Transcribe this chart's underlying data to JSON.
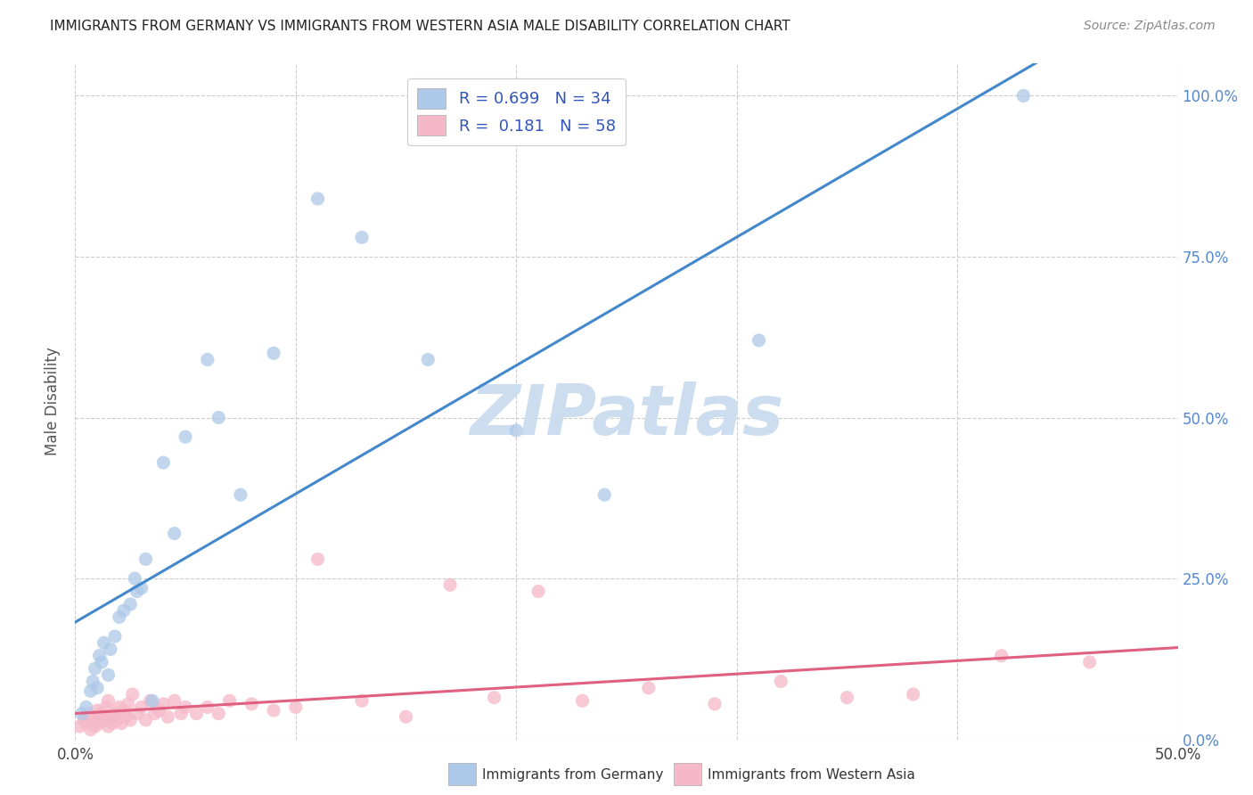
{
  "title": "IMMIGRANTS FROM GERMANY VS IMMIGRANTS FROM WESTERN ASIA MALE DISABILITY CORRELATION CHART",
  "source": "Source: ZipAtlas.com",
  "ylabel": "Male Disability",
  "xlim": [
    0.0,
    0.5
  ],
  "ylim": [
    0.0,
    1.05
  ],
  "yticks": [
    0.0,
    0.25,
    0.5,
    0.75,
    1.0
  ],
  "xticks": [
    0.0,
    0.1,
    0.2,
    0.3,
    0.4,
    0.5
  ],
  "R_germany": 0.699,
  "N_germany": 34,
  "R_western_asia": 0.181,
  "N_western_asia": 58,
  "color_germany": "#adc8e8",
  "color_western_asia": "#f5b8c8",
  "line_color_germany": "#4488cc",
  "line_color_western_asia": "#e06080",
  "watermark": "ZIPatlas",
  "watermark_color": "#ccddf0",
  "germany_points_x": [
    0.003,
    0.005,
    0.007,
    0.008,
    0.009,
    0.01,
    0.011,
    0.012,
    0.013,
    0.015,
    0.016,
    0.018,
    0.02,
    0.022,
    0.025,
    0.027,
    0.028,
    0.03,
    0.032,
    0.035,
    0.04,
    0.045,
    0.05,
    0.06,
    0.065,
    0.075,
    0.09,
    0.11,
    0.13,
    0.16,
    0.2,
    0.24,
    0.31,
    0.43
  ],
  "germany_points_y": [
    0.04,
    0.05,
    0.075,
    0.09,
    0.11,
    0.08,
    0.13,
    0.12,
    0.15,
    0.1,
    0.14,
    0.16,
    0.19,
    0.2,
    0.21,
    0.25,
    0.23,
    0.235,
    0.28,
    0.06,
    0.43,
    0.32,
    0.47,
    0.59,
    0.5,
    0.38,
    0.6,
    0.84,
    0.78,
    0.59,
    0.48,
    0.38,
    0.62,
    1.0
  ],
  "western_asia_points_x": [
    0.002,
    0.004,
    0.005,
    0.006,
    0.007,
    0.008,
    0.009,
    0.01,
    0.01,
    0.011,
    0.012,
    0.013,
    0.014,
    0.015,
    0.015,
    0.016,
    0.017,
    0.018,
    0.019,
    0.02,
    0.021,
    0.022,
    0.023,
    0.024,
    0.025,
    0.026,
    0.028,
    0.03,
    0.032,
    0.034,
    0.036,
    0.038,
    0.04,
    0.042,
    0.045,
    0.048,
    0.05,
    0.055,
    0.06,
    0.065,
    0.07,
    0.08,
    0.09,
    0.1,
    0.11,
    0.13,
    0.15,
    0.17,
    0.19,
    0.21,
    0.23,
    0.26,
    0.29,
    0.32,
    0.35,
    0.38,
    0.42,
    0.46
  ],
  "western_asia_points_y": [
    0.02,
    0.03,
    0.025,
    0.04,
    0.015,
    0.035,
    0.02,
    0.03,
    0.045,
    0.025,
    0.04,
    0.03,
    0.05,
    0.02,
    0.06,
    0.035,
    0.025,
    0.04,
    0.03,
    0.05,
    0.025,
    0.045,
    0.035,
    0.055,
    0.03,
    0.07,
    0.04,
    0.05,
    0.03,
    0.06,
    0.04,
    0.045,
    0.055,
    0.035,
    0.06,
    0.04,
    0.05,
    0.04,
    0.05,
    0.04,
    0.06,
    0.055,
    0.045,
    0.05,
    0.28,
    0.06,
    0.035,
    0.24,
    0.065,
    0.23,
    0.06,
    0.08,
    0.055,
    0.09,
    0.065,
    0.07,
    0.13,
    0.12
  ],
  "legend_label_germany": "Immigrants from Germany",
  "legend_label_western_asia": "Immigrants from Western Asia",
  "background_color": "#ffffff",
  "grid_color": "#cccccc",
  "title_color": "#222222",
  "axis_label_color": "#555555",
  "tick_color_right": "#5588cc",
  "tick_color_x": "#444444",
  "source_color": "#888888"
}
